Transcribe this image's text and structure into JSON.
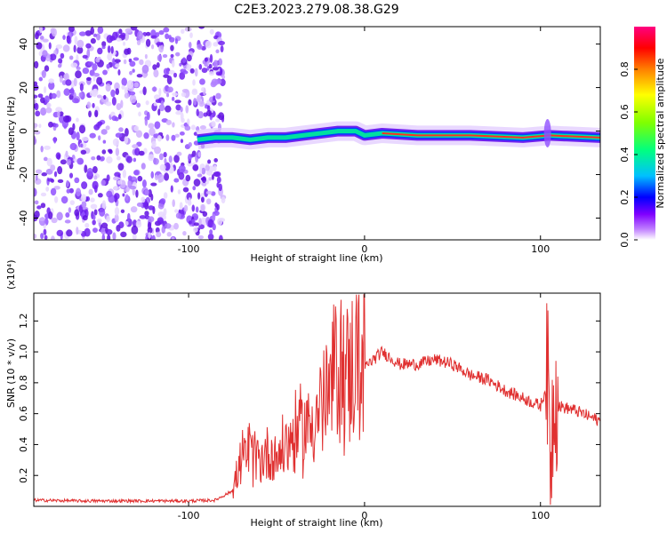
{
  "title": "C2E3.2023.279.08.38.G29",
  "chart_data": [
    {
      "type": "heatmap",
      "xlabel": "Height of straight line (km)",
      "ylabel": "Frequency (Hz)",
      "xlim": [
        -188,
        134
      ],
      "ylim": [
        -50,
        48
      ],
      "xticks": [
        -100,
        0,
        100
      ],
      "yticks": [
        -40,
        -20,
        0,
        20,
        40
      ],
      "colorbar": {
        "label": "Normalized spectral amplitude",
        "range": [
          0,
          1
        ],
        "ticks": [
          "0.0",
          "0.2",
          "0.4",
          "0.6",
          "0.8"
        ],
        "colors": [
          "#ffffff",
          "#c080ff",
          "#8000ff",
          "#0000ff",
          "#00c0ff",
          "#00ff80",
          "#80ff00",
          "#ffff00",
          "#ff8000",
          "#ff0000",
          "#ff0080"
        ]
      },
      "features": {
        "noise_region_x": [
          -188,
          -80
        ],
        "signal_line": [
          {
            "x": -95,
            "y": -4
          },
          {
            "x": -85,
            "y": -3
          },
          {
            "x": -75,
            "y": -3
          },
          {
            "x": -65,
            "y": -4
          },
          {
            "x": -55,
            "y": -3
          },
          {
            "x": -45,
            "y": -3
          },
          {
            "x": -35,
            "y": -2
          },
          {
            "x": -25,
            "y": -1
          },
          {
            "x": -15,
            "y": 0
          },
          {
            "x": -5,
            "y": 0
          },
          {
            "x": 0,
            "y": -2
          },
          {
            "x": 10,
            "y": -1
          },
          {
            "x": 30,
            "y": -2
          },
          {
            "x": 60,
            "y": -2
          },
          {
            "x": 90,
            "y": -3
          },
          {
            "x": 105,
            "y": -2
          },
          {
            "x": 134,
            "y": -3
          }
        ]
      }
    },
    {
      "type": "line",
      "xlabel": "Height of straight line (km)",
      "ylabel": "SNR (10 * v/v)",
      "yscale_label": "(x10⁴)",
      "xlim": [
        -188,
        134
      ],
      "ylim": [
        0,
        1.38
      ],
      "xticks": [
        -100,
        0,
        100
      ],
      "yticks": [
        "0.2",
        "0.4",
        "0.6",
        "0.8",
        "1.0",
        "1.2"
      ],
      "line_color": "#e03030",
      "series": [
        {
          "x": [
            -188,
            -160,
            -130,
            -100,
            -85,
            -75,
            -70,
            -65,
            -60,
            -55,
            -50,
            -45,
            -40,
            -35,
            -30,
            -25,
            -20,
            -18,
            -15,
            -10,
            -5,
            0,
            5,
            10,
            20,
            30,
            40,
            50,
            60,
            70,
            80,
            90,
            100,
            104,
            106,
            108,
            110,
            120,
            134
          ],
          "y": [
            0.04,
            0.035,
            0.035,
            0.035,
            0.04,
            0.1,
            0.3,
            0.35,
            0.3,
            0.35,
            0.32,
            0.4,
            0.45,
            0.5,
            0.55,
            0.65,
            0.7,
            0.85,
            0.9,
            0.85,
            0.95,
            0.9,
            0.95,
            1.0,
            0.92,
            0.92,
            0.95,
            0.92,
            0.85,
            0.82,
            0.75,
            0.7,
            0.65,
            0.8,
            0.3,
            0.9,
            0.65,
            0.62,
            0.55
          ]
        }
      ]
    }
  ]
}
